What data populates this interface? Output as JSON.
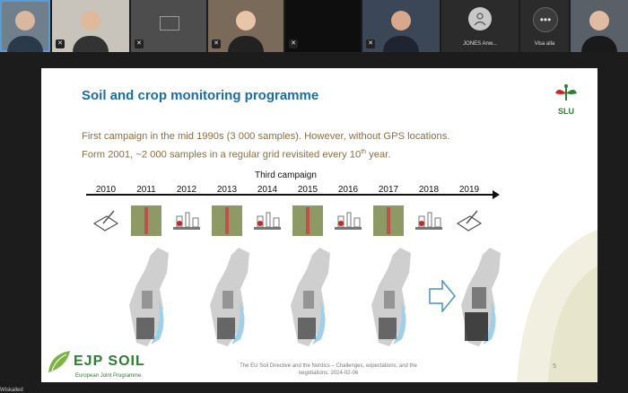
{
  "participants": {
    "jones": {
      "label": "JONES Anw..."
    },
    "more": {
      "label": "Visa alla",
      "icon": "more-icon"
    }
  },
  "slide": {
    "title": "Soil and crop monitoring programme",
    "logo_text": "SLU",
    "line1": "First campaign in the mid 1990s (3 000 samples). However, without GPS locations.",
    "line2_a": "Form 2001, ~2 000 samples in a regular grid revisited every 10",
    "line2_sup": "th",
    "line2_b": " year.",
    "third_campaign": "Third campaign",
    "years": [
      "2010",
      "2011",
      "2012",
      "2013",
      "2014",
      "2015",
      "2016",
      "2017",
      "2018",
      "2019"
    ],
    "footer_brand": "EJP SOIL",
    "footer_brand_sub": "European Joint Programme",
    "footer_text": "The EU Soil Directive and the Nordics – Challenges, expectations, and the negotiations, 2024-02-06",
    "page_number": "5"
  },
  "colors": {
    "title": "#1b6ea1",
    "body_text": "#8a6f45",
    "brand_green": "#2e7d32"
  },
  "bottom_label": "Wiskalled"
}
